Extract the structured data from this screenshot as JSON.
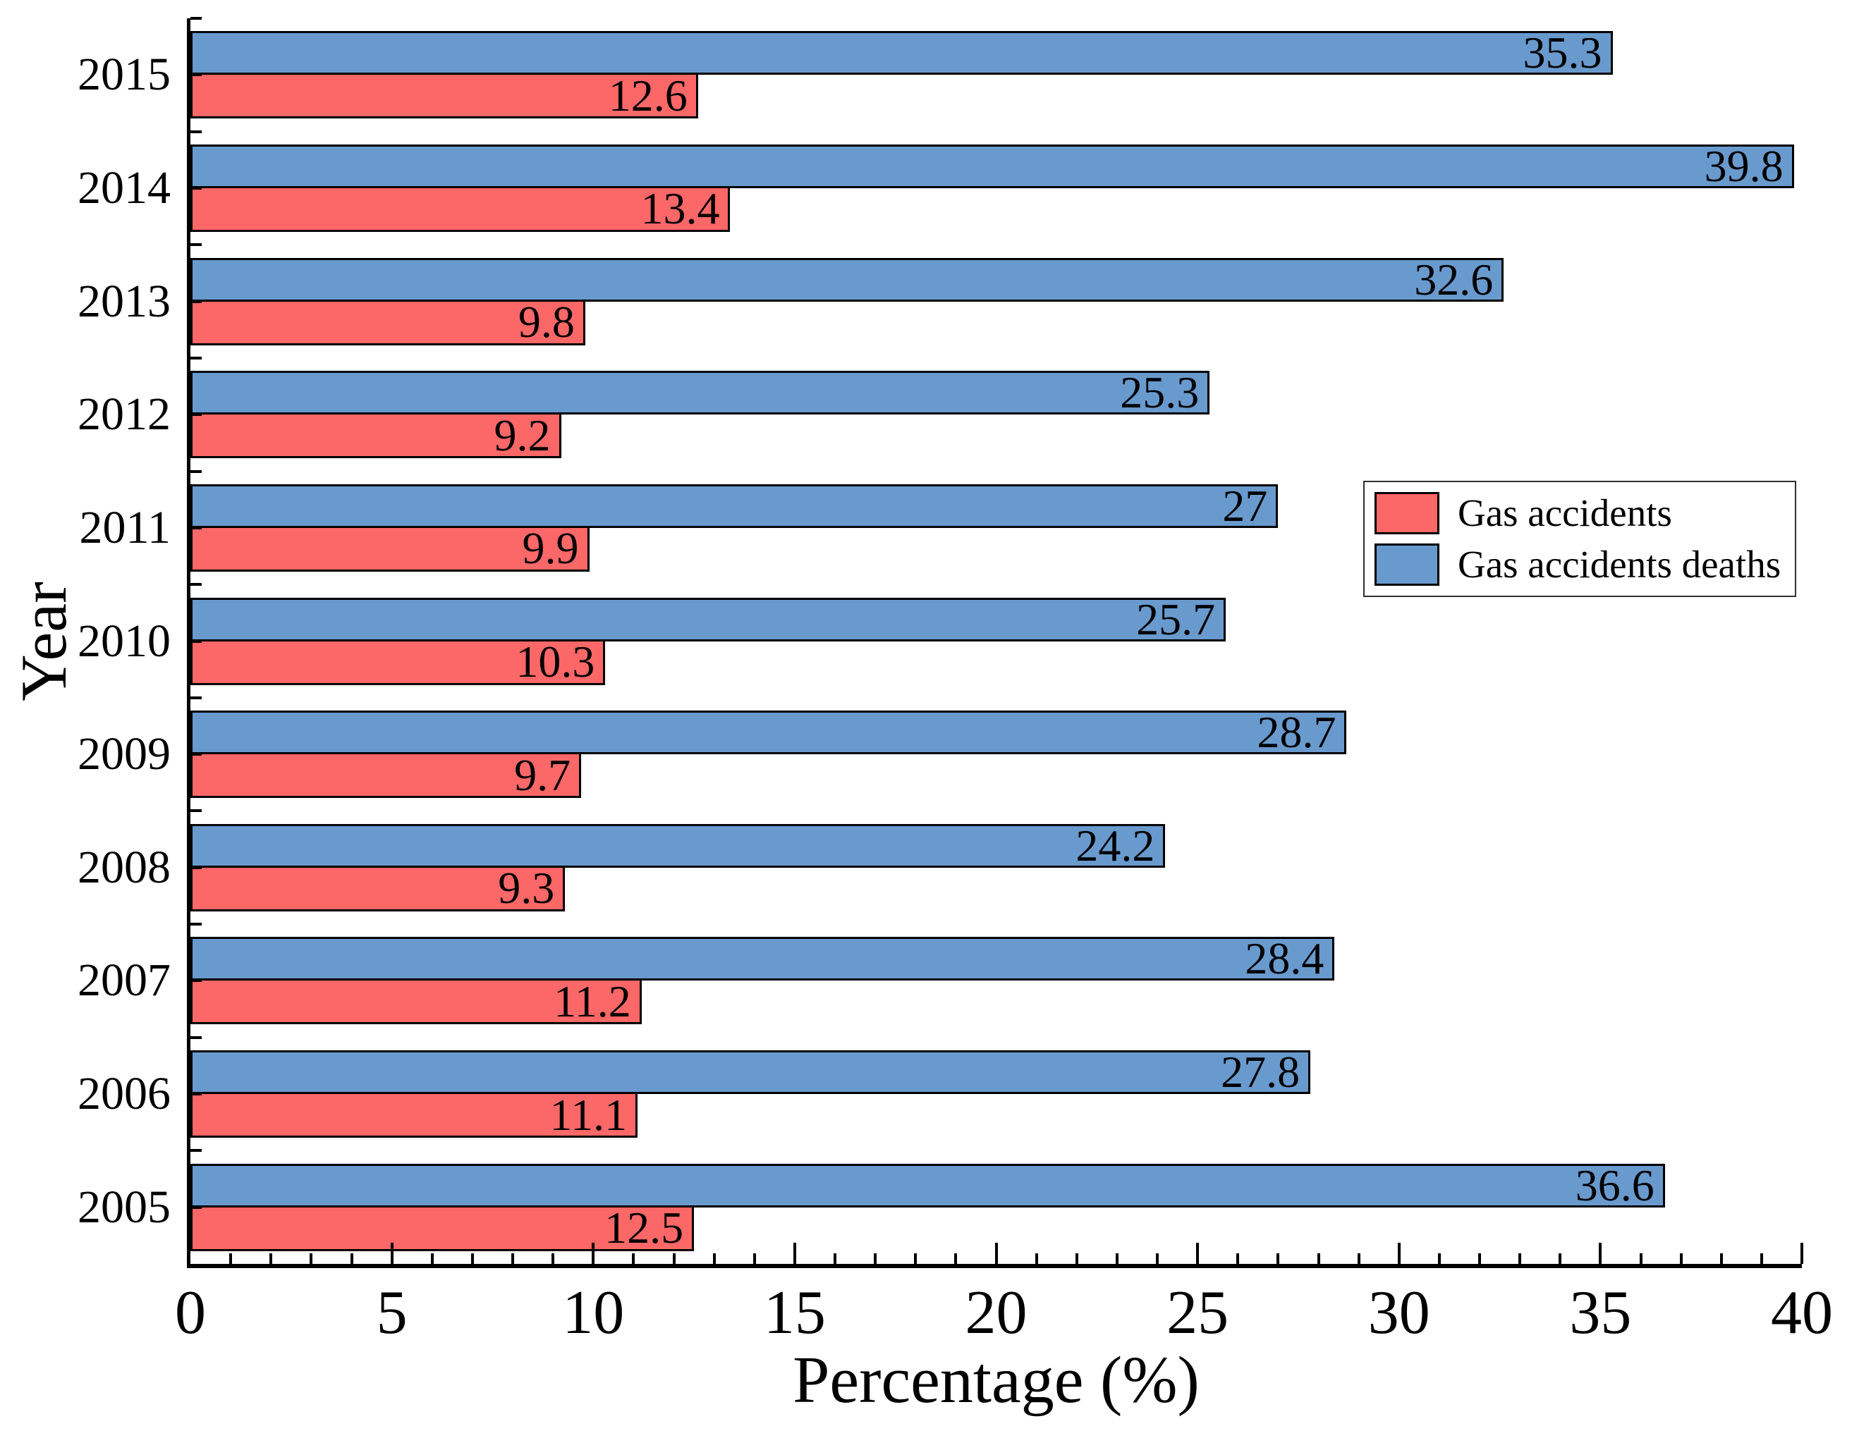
{
  "chart_data": {
    "type": "bar",
    "orientation": "horizontal",
    "title": "",
    "xlabel": "Percentage (%)",
    "ylabel": "Year",
    "xlim": [
      0,
      40
    ],
    "grid": false,
    "legend_position": "center-right",
    "value_labels": "inside-end",
    "categories": [
      "2015",
      "2014",
      "2013",
      "2012",
      "2011",
      "2010",
      "2009",
      "2008",
      "2007",
      "2006",
      "2005"
    ],
    "x_axis": {
      "min": 0,
      "max": 40,
      "major_step": 5,
      "minor_step": 1,
      "tick_labels": [
        "0",
        "5",
        "10",
        "15",
        "20",
        "25",
        "30",
        "35",
        "40"
      ]
    },
    "series": [
      {
        "name": "Gas accidents",
        "color": "#FC6767",
        "row": "bottom",
        "values": [
          12.6,
          13.4,
          9.8,
          9.2,
          9.9,
          10.3,
          9.7,
          9.3,
          11.2,
          11.1,
          12.5
        ],
        "labels": [
          "12.6",
          "13.4",
          "9.8",
          "9.2",
          "9.9",
          "10.3",
          "9.7",
          "9.3",
          "11.2",
          "11.1",
          "12.5"
        ]
      },
      {
        "name": "Gas accidents deaths",
        "color": "#699ACE",
        "row": "top",
        "values": [
          35.3,
          39.8,
          32.6,
          25.3,
          27,
          25.7,
          28.7,
          24.2,
          28.4,
          27.8,
          36.6
        ],
        "labels": [
          "35.3",
          "39.8",
          "32.6",
          "25.3",
          "27",
          "25.7",
          "28.7",
          "24.2",
          "28.4",
          "27.8",
          "36.6"
        ]
      }
    ]
  }
}
